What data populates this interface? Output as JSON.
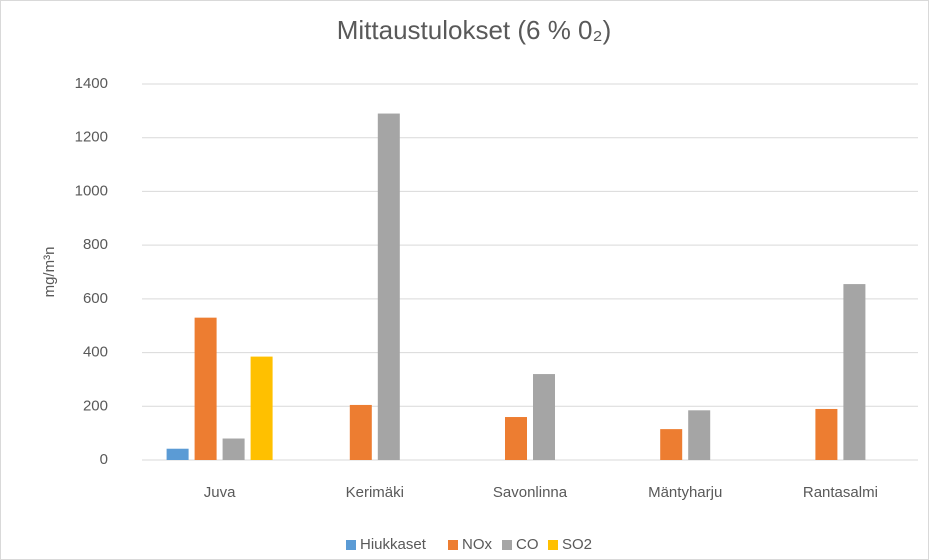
{
  "chart_data": {
    "type": "bar",
    "title": "Mittaustulokset (6 % 0₂)",
    "y_label": "mg/m³n",
    "categories": [
      "Juva",
      "Kerimäki",
      "Savonlinna",
      "Mäntyharju",
      "Rantasalmi"
    ],
    "series": [
      {
        "name": "Hiukkaset",
        "color": "#5b9bd5",
        "values": [
          42,
          null,
          null,
          null,
          null
        ]
      },
      {
        "name": "NOx",
        "color": "#ed7d31",
        "values": [
          530,
          205,
          160,
          115,
          190
        ]
      },
      {
        "name": "CO",
        "color": "#a5a5a5",
        "values": [
          80,
          1290,
          320,
          185,
          655
        ]
      },
      {
        "name": "SO2",
        "color": "#ffc000",
        "values": [
          385,
          null,
          null,
          null,
          null
        ]
      }
    ],
    "ylim": [
      0,
      1400
    ],
    "yticks": [
      0,
      200,
      400,
      600,
      800,
      1000,
      1200,
      1400
    ],
    "grid": true,
    "legend": "bottom"
  }
}
